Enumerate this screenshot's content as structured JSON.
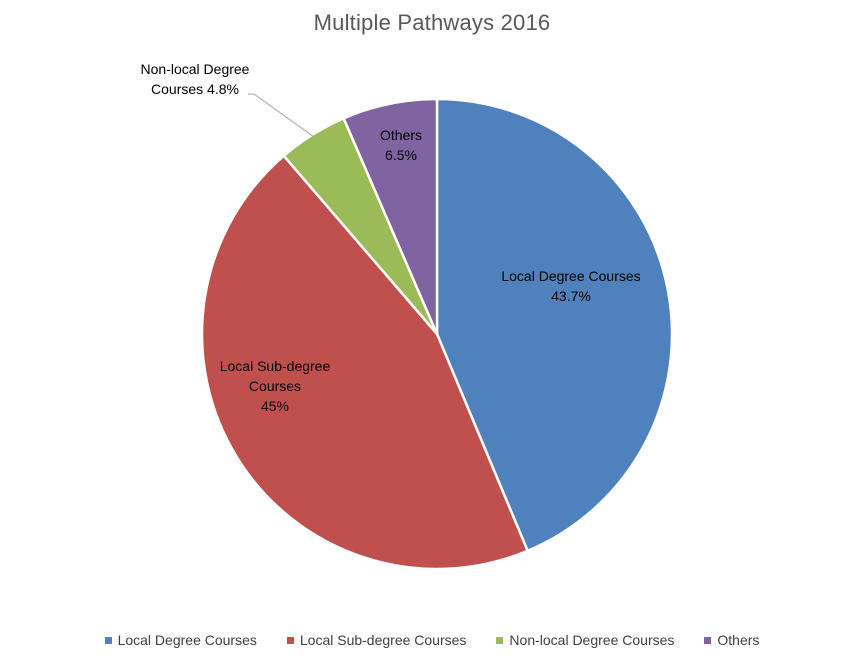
{
  "chart_data": {
    "type": "pie",
    "title": "Multiple Pathways 2016",
    "slices": [
      {
        "name": "Local Degree Courses",
        "value": 43.7,
        "label_lines": [
          "Local Degree Courses",
          "43.7%"
        ],
        "color": "#4F81BD"
      },
      {
        "name": "Local Sub-degree Courses",
        "value": 45,
        "label_lines": [
          "Local Sub-degree",
          "Courses",
          "45%"
        ],
        "color": "#C0504D"
      },
      {
        "name": "Non-local Degree Courses",
        "value": 4.8,
        "label_lines": [
          "Non-local Degree",
          "Courses 4.8%"
        ],
        "color": "#9BBB59"
      },
      {
        "name": "Others",
        "value": 6.5,
        "label_lines": [
          "Others",
          "6.5%"
        ],
        "color": "#8064A2"
      }
    ],
    "legend_position": "bottom",
    "start_angle": "top, clockwise"
  }
}
